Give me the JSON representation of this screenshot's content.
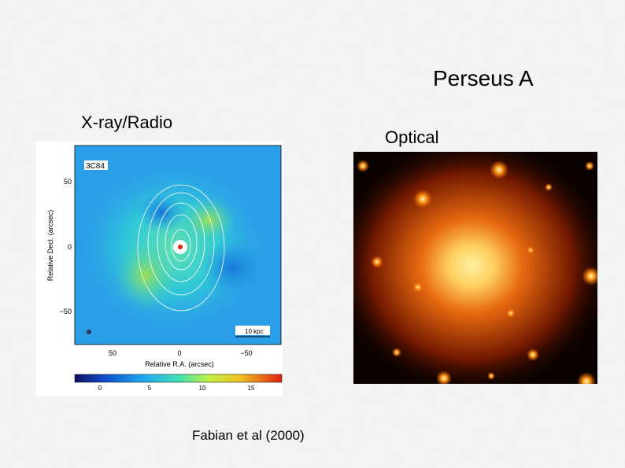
{
  "slide": {
    "title": "Perseus A",
    "left_label": "X-ray/Radio",
    "right_label": "Optical",
    "caption": "Fabian et al (2000)"
  },
  "xray_figure": {
    "source_label": "3C84",
    "y_axis_label": "Relative Decl. (arcsec)",
    "x_axis_label": "Relative R.A. (arcsec)",
    "y_ticks": [
      "50",
      "0",
      "−50"
    ],
    "x_ticks": [
      "50",
      "0",
      "−50"
    ],
    "scale_bar": "10 kpc",
    "colorbar_ticks": [
      "0",
      "5",
      "10",
      "15"
    ]
  }
}
